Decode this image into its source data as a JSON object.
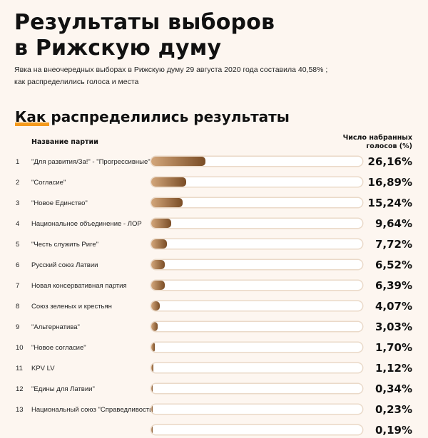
{
  "header": {
    "title_line1": "Результаты выборов",
    "title_line2": "в Рижскую думу",
    "subtitle_line1": "Явка на внеочередных выборах в Рижскую думу 29 августа 2020 года составила 40,58% ;",
    "subtitle_line2": "как распределились голоса и места"
  },
  "accent_color": "#f59a1c",
  "bar_colors": [
    "#d3a67a",
    "#7a4d26"
  ],
  "chart_data": {
    "type": "bar",
    "orientation": "horizontal",
    "title": "Как распределились результаты",
    "category_header": "Название партии",
    "value_header_line1": "Число набранных",
    "value_header_line2": "голосов (%)",
    "xlim": [
      0,
      100
    ],
    "rows": [
      {
        "num": "1",
        "label": "\"Для развития/За!\" - \"Прогрессивные\"",
        "value": 26.16,
        "value_label": "26,16%"
      },
      {
        "num": "2",
        "label": "\"Согласие\"",
        "value": 16.89,
        "value_label": "16,89%"
      },
      {
        "num": "3",
        "label": "\"Новое Единство\"",
        "value": 15.24,
        "value_label": "15,24%"
      },
      {
        "num": "4",
        "label": "Национальное объединение - ЛОР",
        "value": 9.64,
        "value_label": "9,64%"
      },
      {
        "num": "5",
        "label": "\"Честь служить Риге\"",
        "value": 7.72,
        "value_label": "7,72%"
      },
      {
        "num": "6",
        "label": "Русский союз Латвии",
        "value": 6.52,
        "value_label": "6,52%"
      },
      {
        "num": "7",
        "label": "Новая консервативная партия",
        "value": 6.39,
        "value_label": "6,39%"
      },
      {
        "num": "8",
        "label": "Союз зеленых и крестьян",
        "value": 4.07,
        "value_label": "4,07%"
      },
      {
        "num": "9",
        "label": "\"Альтернатива\"",
        "value": 3.03,
        "value_label": "3,03%"
      },
      {
        "num": "10",
        "label": "\"Новое согласие\"",
        "value": 1.7,
        "value_label": "1,70%"
      },
      {
        "num": "11",
        "label": "KPV LV",
        "value": 1.12,
        "value_label": "1,12%"
      },
      {
        "num": "12",
        "label": "\"Едины для Латвии\"",
        "value": 0.34,
        "value_label": "0,34%"
      },
      {
        "num": "13",
        "label": "Национальный союз \"Справедливость\"",
        "value": 0.23,
        "value_label": "0,23%"
      },
      {
        "num": "",
        "label": "",
        "value": 0.19,
        "value_label": "0,19%"
      }
    ]
  }
}
